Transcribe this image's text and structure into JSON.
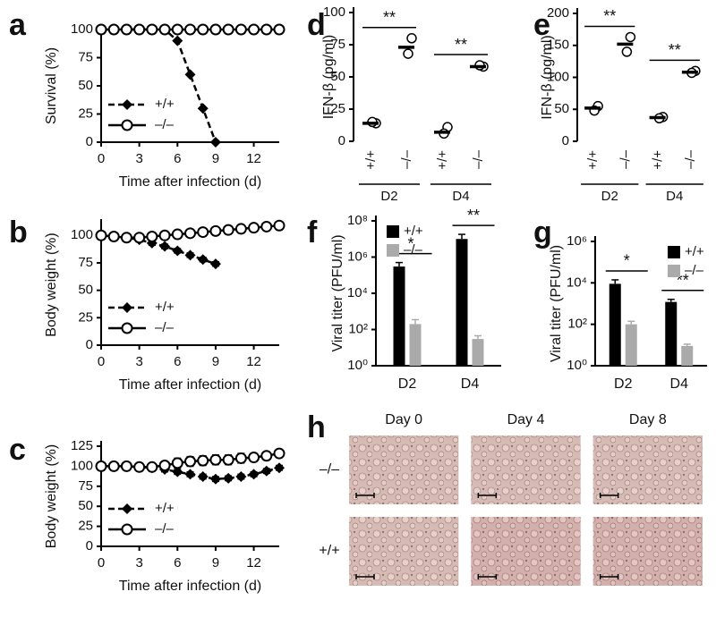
{
  "chart_data": [
    {
      "panel": "a",
      "type": "line",
      "ylabel": "Survival (%)",
      "xlabel": "Time after infection (d)",
      "xlim": [
        0,
        14
      ],
      "xticks": [
        0,
        3,
        6,
        9,
        12
      ],
      "ylim": [
        0,
        100
      ],
      "yticks": [
        0,
        25,
        50,
        75,
        100
      ],
      "legend": "lower left",
      "series": [
        {
          "name": "+/+",
          "color": "#000000",
          "marker": "diamond",
          "dashed": true,
          "x": [
            0,
            1,
            2,
            3,
            4,
            5,
            6,
            7,
            8,
            9
          ],
          "values": [
            100,
            100,
            100,
            100,
            100,
            100,
            90,
            60,
            30,
            0
          ]
        },
        {
          "name": "–/–",
          "color": "#000000",
          "marker": "circle",
          "dashed": false,
          "x": [
            0,
            1,
            2,
            3,
            4,
            5,
            6,
            7,
            8,
            9,
            10,
            11,
            12,
            13,
            14
          ],
          "values": [
            100,
            100,
            100,
            100,
            100,
            100,
            100,
            100,
            100,
            100,
            100,
            100,
            100,
            100,
            100
          ]
        }
      ]
    },
    {
      "panel": "b",
      "type": "line",
      "ylabel": "Body weight (%)",
      "xlabel": "Time after infection (d)",
      "xlim": [
        0,
        14
      ],
      "xticks": [
        0,
        3,
        6,
        9,
        12
      ],
      "ylim": [
        0,
        110
      ],
      "yticks": [
        0,
        25,
        50,
        75,
        100
      ],
      "legend": "lower left",
      "series": [
        {
          "name": "+/+",
          "color": "#000000",
          "marker": "diamond",
          "dashed": true,
          "x": [
            0,
            1,
            2,
            3,
            4,
            5,
            6,
            7,
            8,
            9
          ],
          "values": [
            100,
            99,
            98,
            96,
            93,
            90,
            86,
            82,
            78,
            74
          ],
          "errors": [
            0,
            1,
            1,
            2,
            2,
            2,
            2,
            2,
            2,
            2
          ]
        },
        {
          "name": "–/–",
          "color": "#000000",
          "marker": "circle",
          "dashed": false,
          "x": [
            0,
            1,
            2,
            3,
            4,
            5,
            6,
            7,
            8,
            9,
            10,
            11,
            12,
            13,
            14
          ],
          "values": [
            100,
            99,
            98,
            98,
            99,
            100,
            101,
            102,
            103,
            104,
            105,
            106,
            107,
            108,
            109
          ],
          "errors": [
            0,
            1,
            1,
            1,
            1,
            2,
            2,
            2,
            2,
            2,
            2,
            2,
            3,
            3,
            3
          ]
        }
      ]
    },
    {
      "panel": "c",
      "type": "line",
      "ylabel": "Body weight (%)",
      "xlabel": "Time after infection (d)",
      "xlim": [
        0,
        14
      ],
      "xticks": [
        0,
        3,
        6,
        9,
        12
      ],
      "ylim": [
        0,
        125
      ],
      "yticks": [
        0,
        25,
        50,
        75,
        100,
        125
      ],
      "legend": "lower left",
      "series": [
        {
          "name": "+/+",
          "color": "#000000",
          "marker": "diamond",
          "dashed": true,
          "x": [
            0,
            1,
            2,
            3,
            4,
            5,
            6,
            7,
            8,
            9,
            10,
            11,
            12,
            13,
            14
          ],
          "values": [
            100,
            100,
            100,
            99,
            98,
            96,
            93,
            90,
            87,
            84,
            85,
            87,
            90,
            94,
            98
          ],
          "errors": [
            2,
            2,
            2,
            2,
            3,
            3,
            3,
            3,
            3,
            3,
            3,
            3,
            3,
            3,
            3
          ]
        },
        {
          "name": "–/–",
          "color": "#000000",
          "marker": "circle",
          "dashed": false,
          "x": [
            0,
            1,
            2,
            3,
            4,
            5,
            6,
            7,
            8,
            9,
            10,
            11,
            12,
            13,
            14
          ],
          "values": [
            100,
            100,
            100,
            99,
            99,
            101,
            104,
            106,
            107,
            108,
            108,
            110,
            111,
            113,
            116
          ],
          "errors": [
            3,
            3,
            3,
            3,
            3,
            5,
            6,
            6,
            6,
            6,
            6,
            6,
            5,
            5,
            5
          ]
        }
      ]
    },
    {
      "panel": "d",
      "type": "dot",
      "ylabel": "IFN-β (pg/ml)",
      "ylim": [
        0,
        100
      ],
      "yticks": [
        0,
        25,
        50,
        75,
        100
      ],
      "categories": [
        "+/+",
        "–/–",
        "+/+",
        "–/–"
      ],
      "groups": [
        "D2",
        "D4"
      ],
      "points": [
        [
          14,
          15
        ],
        [
          80,
          68
        ],
        [
          11,
          6
        ],
        [
          58,
          59
        ]
      ],
      "values": [
        14,
        73,
        7,
        58
      ],
      "significance": [
        "**",
        "**"
      ]
    },
    {
      "panel": "e",
      "type": "dot",
      "ylabel": "IFN-β (pg/ml)",
      "ylim": [
        0,
        200
      ],
      "yticks": [
        0,
        50,
        100,
        150,
        200
      ],
      "categories": [
        "+/+",
        "–/–",
        "+/+",
        "–/–"
      ],
      "groups": [
        "D2",
        "D4"
      ],
      "points": [
        [
          55,
          48
        ],
        [
          163,
          140
        ],
        [
          38,
          36
        ],
        [
          110,
          107
        ]
      ],
      "values": [
        52,
        152,
        37,
        108
      ],
      "significance": [
        "**",
        "**"
      ]
    },
    {
      "panel": "f",
      "type": "bar",
      "log": true,
      "ylabel": "Viral titer (PFU/ml)",
      "categories": [
        "D2",
        "D4"
      ],
      "ylim": [
        1,
        100000000
      ],
      "yticks": [
        {
          "value": 1,
          "label": "10⁰"
        },
        {
          "value": 100,
          "label": "10²"
        },
        {
          "value": 10000,
          "label": "10⁴"
        },
        {
          "value": 1000000,
          "label": "10⁶"
        },
        {
          "value": 100000000,
          "label": "10⁸"
        }
      ],
      "legend": "upper left",
      "series": [
        {
          "name": "+/+",
          "color": "#000000",
          "values": [
            300000,
            10000000
          ],
          "errors": [
            200000,
            8000000
          ]
        },
        {
          "name": "–/–",
          "color": "#aaaaaa",
          "values": [
            200,
            30
          ],
          "errors": [
            150,
            15
          ]
        }
      ],
      "significance": [
        "*",
        "**"
      ]
    },
    {
      "panel": "g",
      "type": "bar",
      "log": true,
      "ylabel": "Viral titer (PFU/ml)",
      "categories": [
        "D2",
        "D4"
      ],
      "ylim": [
        1,
        1000000
      ],
      "yticks": [
        {
          "value": 1,
          "label": "10⁰"
        },
        {
          "value": 100,
          "label": "10²"
        },
        {
          "value": 10000,
          "label": "10⁴"
        },
        {
          "value": 1000000,
          "label": "10⁶"
        }
      ],
      "legend": "upper right",
      "series": [
        {
          "name": "+/+",
          "color": "#000000",
          "values": [
            9000,
            1200
          ],
          "errors": [
            5000,
            400
          ]
        },
        {
          "name": "–/–",
          "color": "#aaaaaa",
          "values": [
            100,
            9
          ],
          "errors": [
            40,
            2
          ]
        }
      ],
      "significance": [
        "*",
        "**"
      ]
    },
    {
      "panel": "h",
      "type": "images",
      "columns": [
        "Day 0",
        "Day 4",
        "Day 8"
      ],
      "rows": [
        "–/–",
        "+/+"
      ]
    }
  ]
}
